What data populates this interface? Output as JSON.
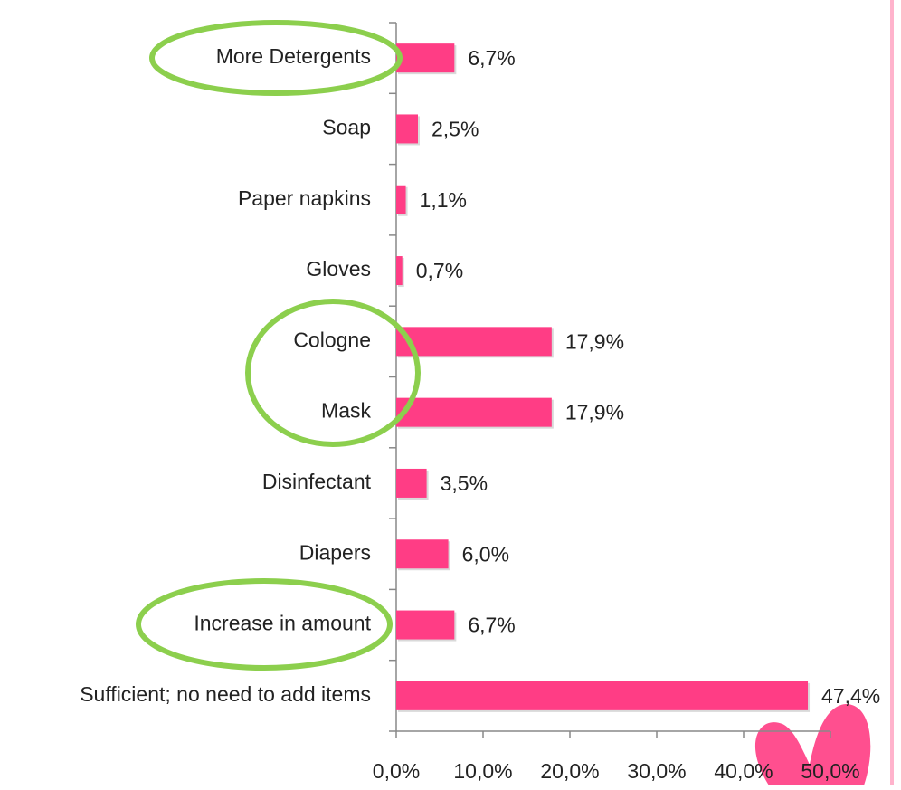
{
  "chart_data": {
    "type": "bar",
    "orientation": "horizontal",
    "categories": [
      "More Detergents",
      "Soap",
      "Paper napkins",
      "Gloves",
      "Cologne",
      "Mask",
      "Disinfectant",
      "Diapers",
      "Increase in amount",
      "Sufficient; no need to add items"
    ],
    "values": [
      6.7,
      2.5,
      1.1,
      0.7,
      17.9,
      17.9,
      3.5,
      6.0,
      6.7,
      47.4
    ],
    "value_labels": [
      "6,7%",
      "2,5%",
      "1,1%",
      "0,7%",
      "17,9%",
      "17,9%",
      "3,5%",
      "6,0%",
      "6,7%",
      "47,4%"
    ],
    "color": "#ff3d85",
    "xlim": [
      0,
      50
    ],
    "xticks": [
      {
        "value": 0,
        "label": "0,0%"
      },
      {
        "value": 10,
        "label": "10,0%"
      },
      {
        "value": 20,
        "label": "20,0%"
      },
      {
        "value": 30,
        "label": "30,0%"
      },
      {
        "value": 40,
        "label": "40,0%"
      },
      {
        "value": 50,
        "label": "50,0%"
      }
    ]
  }
}
